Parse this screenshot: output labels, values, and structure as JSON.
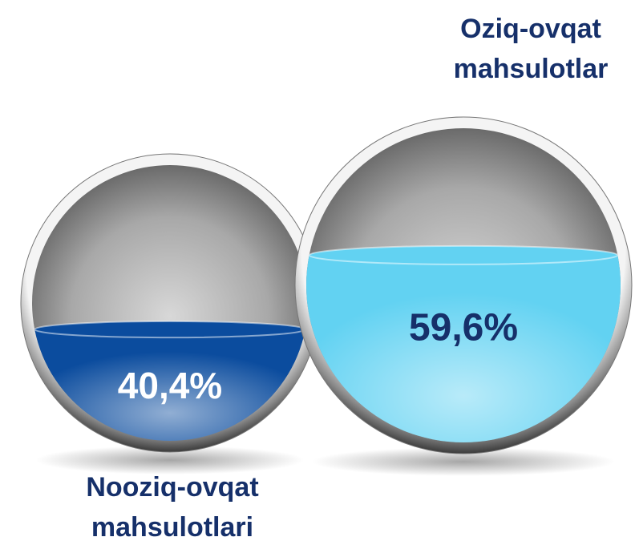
{
  "chart_data": {
    "type": "sphere-fill",
    "categories": [
      "Nooziq-ovqat mahsulotlari",
      "Oziq-ovqat mahsulotlar"
    ],
    "values": [
      40.4,
      59.6
    ],
    "value_labels": [
      "40,4%",
      "59,6%"
    ],
    "colors": [
      "#0b4c9e",
      "#62d2f2"
    ],
    "label_colors": [
      "#ffffff",
      "#16306a"
    ]
  }
}
